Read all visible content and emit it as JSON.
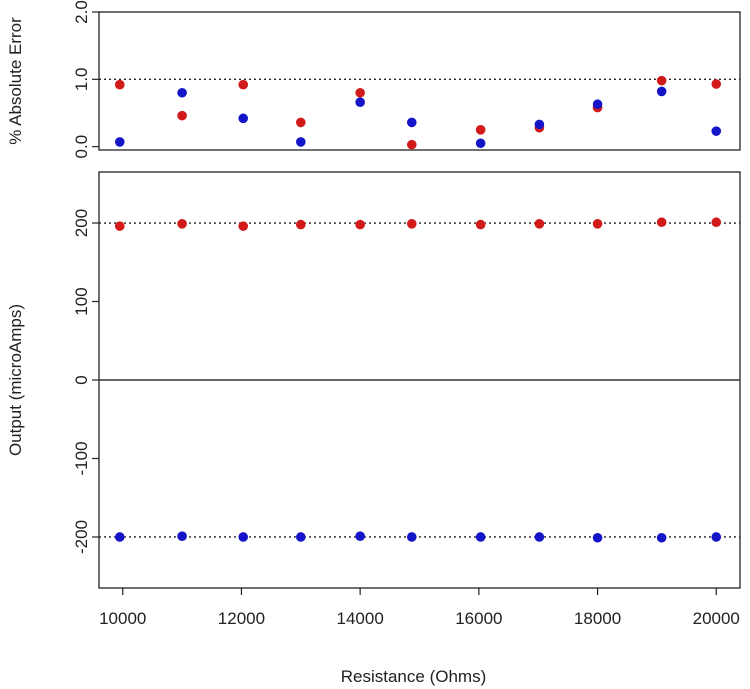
{
  "chart_data": [
    {
      "type": "scatter",
      "ylabel": "% Absolute Error",
      "xlim": [
        9600,
        20400
      ],
      "ylim": [
        -0.05,
        2.0
      ],
      "yticks": [
        0.0,
        1.0,
        2.0
      ],
      "ytick_labels": [
        "0.0",
        "1.0",
        "2.0"
      ],
      "reference_line": 1.0,
      "grid": false,
      "series": [
        {
          "color": "#d21a1a",
          "x": [
            9950,
            11000,
            12030,
            13000,
            14000,
            14870,
            16030,
            17020,
            18000,
            19080,
            20000
          ],
          "y": [
            0.92,
            0.46,
            0.92,
            0.36,
            0.8,
            0.03,
            0.25,
            0.28,
            0.58,
            0.98,
            0.93
          ]
        },
        {
          "color": "#1414c8",
          "x": [
            9950,
            11000,
            12030,
            13000,
            14000,
            14870,
            16030,
            17020,
            18000,
            19080,
            20000
          ],
          "y": [
            0.07,
            0.8,
            0.42,
            0.07,
            0.66,
            0.36,
            0.05,
            0.33,
            0.63,
            0.82,
            0.23
          ]
        }
      ]
    },
    {
      "type": "scatter",
      "xlabel": "Resistance (Ohms)",
      "ylabel": "Output (microAmps)",
      "xlim": [
        9600,
        20400
      ],
      "ylim": [
        -265,
        265
      ],
      "xticks": [
        10000,
        12000,
        14000,
        16000,
        18000,
        20000
      ],
      "xtick_labels": [
        "10000",
        "12000",
        "14000",
        "16000",
        "18000",
        "20000"
      ],
      "yticks": [
        -200,
        -100,
        0,
        100,
        200
      ],
      "ytick_labels": [
        "-200",
        "-100",
        "0",
        "100",
        "200"
      ],
      "reference_lines": [
        200,
        -200
      ],
      "zero_line": 0,
      "grid": false,
      "series": [
        {
          "color": "#d21a1a",
          "x": [
            9950,
            11000,
            12030,
            13000,
            14000,
            14870,
            16030,
            17020,
            18000,
            19080,
            20000
          ],
          "y": [
            196,
            199,
            196,
            198,
            198,
            199,
            198,
            199,
            199,
            201,
            201
          ]
        },
        {
          "color": "#1414c8",
          "x": [
            9950,
            11000,
            12030,
            13000,
            14000,
            14870,
            16030,
            17020,
            18000,
            19080,
            20000
          ],
          "y": [
            -200,
            -199,
            -200,
            -200,
            -199,
            -200,
            -200,
            -200,
            -201,
            -201,
            -200
          ]
        }
      ]
    }
  ]
}
